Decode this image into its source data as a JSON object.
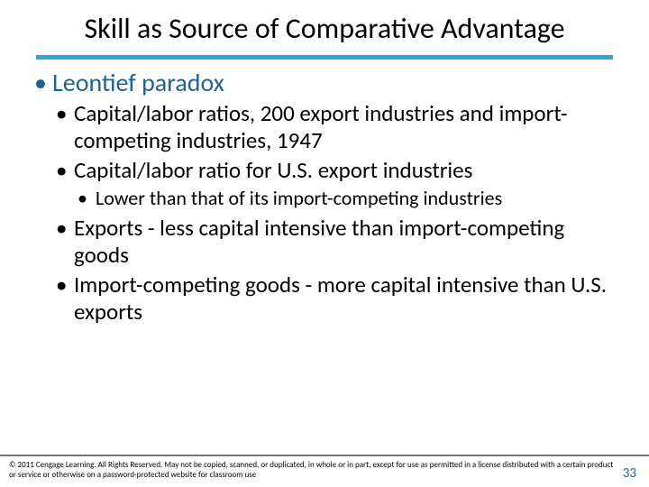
{
  "colors": {
    "accent_rule": "#2ca8d8",
    "lvl1_text": "#1f6390",
    "pagenum": "#1f6390",
    "footer_rule": "#777777"
  },
  "title": "Skill as Source of Comparative Advantage",
  "bullets": {
    "l1a": "Leontief paradox",
    "l2a": "Capital/labor ratios, 200 export industries and import-competing industries, 1947",
    "l2b": "Capital/labor ratio for U.S. export industries",
    "l3a": "Lower than that of its import-competing industries",
    "l2c": "Exports - less capital intensive than import-competing goods",
    "l2d": "Import-competing goods - more capital intensive than U.S. exports"
  },
  "footer": {
    "copyright": "© 2011 Cengage Learning. All Rights Reserved. May not be copied, scanned, or duplicated, in whole or in part, except for use as permitted in a license distributed with a certain product or service or otherwise on a password-protected website for classroom use",
    "page_number": "33"
  }
}
